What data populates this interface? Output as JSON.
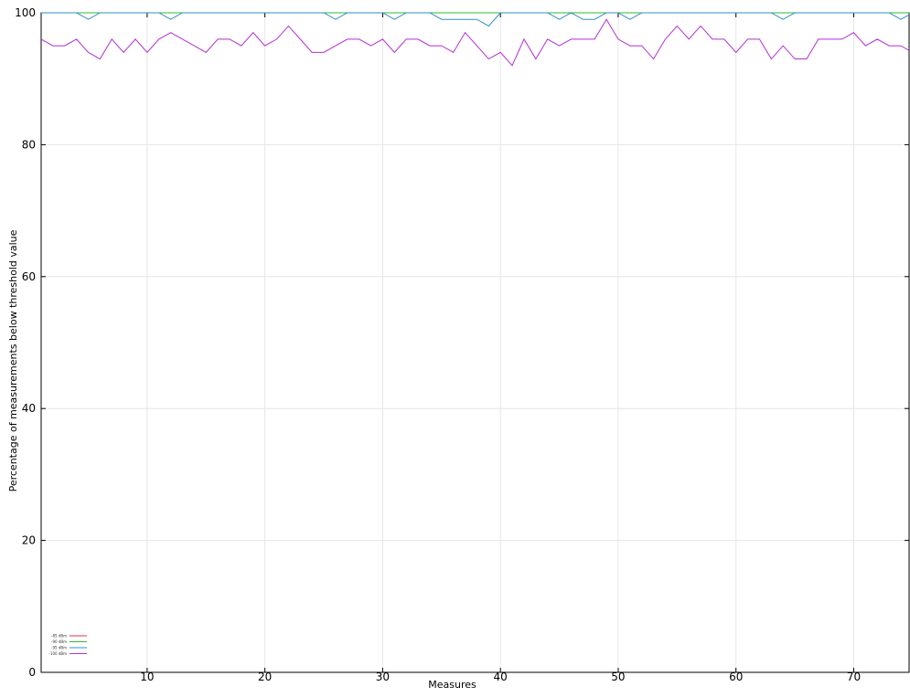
{
  "chart_data": {
    "type": "line",
    "title": "",
    "xlabel": "Measures",
    "ylabel": "Percentage of measurements below threshold value",
    "xlim": [
      1,
      74.7
    ],
    "ylim": [
      0,
      100
    ],
    "xticks": [
      10,
      20,
      30,
      40,
      50,
      60,
      70
    ],
    "yticks": [
      0,
      20,
      40,
      60,
      80,
      100
    ],
    "grid": true,
    "legend_position": "bottom-left",
    "x": [
      1,
      2,
      3,
      4,
      5,
      6,
      7,
      8,
      9,
      10,
      11,
      12,
      13,
      14,
      15,
      16,
      17,
      18,
      19,
      20,
      21,
      22,
      23,
      24,
      25,
      26,
      27,
      28,
      29,
      30,
      31,
      32,
      33,
      34,
      35,
      36,
      37,
      38,
      39,
      40,
      41,
      42,
      43,
      44,
      45,
      46,
      47,
      48,
      49,
      50,
      51,
      52,
      53,
      54,
      55,
      56,
      57,
      58,
      59,
      60,
      61,
      62,
      63,
      64,
      65,
      66,
      67,
      68,
      69,
      70,
      71,
      72,
      73,
      74,
      75
    ],
    "series": [
      {
        "name": "-85 dBm",
        "color": "#e0334a",
        "values": [
          100,
          100,
          100,
          100,
          100,
          100,
          100,
          100,
          100,
          100,
          100,
          100,
          100,
          100,
          100,
          100,
          100,
          100,
          100,
          100,
          100,
          100,
          100,
          100,
          100,
          100,
          100,
          100,
          100,
          100,
          100,
          100,
          100,
          100,
          100,
          100,
          100,
          100,
          100,
          100,
          100,
          100,
          100,
          100,
          100,
          100,
          100,
          100,
          100,
          100,
          100,
          100,
          100,
          100,
          100,
          100,
          100,
          100,
          100,
          100,
          100,
          100,
          100,
          100,
          100,
          100,
          100,
          100,
          100,
          100,
          100,
          100,
          100,
          100,
          100
        ]
      },
      {
        "name": "-90 dBm",
        "color": "#33b833",
        "values": [
          100,
          100,
          100,
          100,
          100,
          100,
          100,
          100,
          100,
          100,
          100,
          100,
          100,
          100,
          100,
          100,
          100,
          100,
          100,
          100,
          100,
          100,
          100,
          100,
          100,
          100,
          100,
          100,
          100,
          100,
          100,
          100,
          100,
          100,
          100,
          100,
          100,
          100,
          100,
          100,
          100,
          100,
          100,
          100,
          100,
          100,
          100,
          100,
          100,
          100,
          100,
          100,
          100,
          100,
          100,
          100,
          100,
          100,
          100,
          100,
          100,
          100,
          100,
          100,
          100,
          100,
          100,
          100,
          100,
          100,
          100,
          100,
          100,
          100,
          100
        ]
      },
      {
        "name": "-95 dBm",
        "color": "#2f8fc9",
        "values": [
          100,
          100,
          100,
          100,
          99,
          100,
          100,
          100,
          100,
          100,
          100,
          99,
          100,
          100,
          100,
          100,
          100,
          100,
          100,
          100,
          100,
          100,
          100,
          100,
          100,
          99,
          100,
          100,
          100,
          100,
          99,
          100,
          100,
          100,
          99,
          99,
          99,
          99,
          98,
          100,
          100,
          100,
          100,
          100,
          99,
          100,
          99,
          99,
          100,
          100,
          99,
          100,
          100,
          100,
          100,
          100,
          100,
          100,
          100,
          100,
          100,
          100,
          100,
          99,
          100,
          100,
          100,
          100,
          100,
          100,
          100,
          100,
          100,
          99,
          100
        ]
      },
      {
        "name": "-100 dBm",
        "color": "#b52fd6",
        "values": [
          96,
          95,
          95,
          96,
          94,
          93,
          96,
          94,
          96,
          94,
          96,
          97,
          96,
          95,
          94,
          96,
          96,
          95,
          97,
          95,
          96,
          98,
          96,
          94,
          94,
          95,
          96,
          96,
          95,
          96,
          94,
          96,
          96,
          95,
          95,
          94,
          97,
          95,
          93,
          94,
          92,
          96,
          93,
          96,
          95,
          96,
          96,
          96,
          99,
          96,
          95,
          95,
          93,
          96,
          98,
          96,
          98,
          96,
          96,
          94,
          96,
          96,
          93,
          95,
          93,
          93,
          96,
          96,
          96,
          97,
          95,
          96,
          95,
          95,
          94
        ]
      }
    ]
  }
}
